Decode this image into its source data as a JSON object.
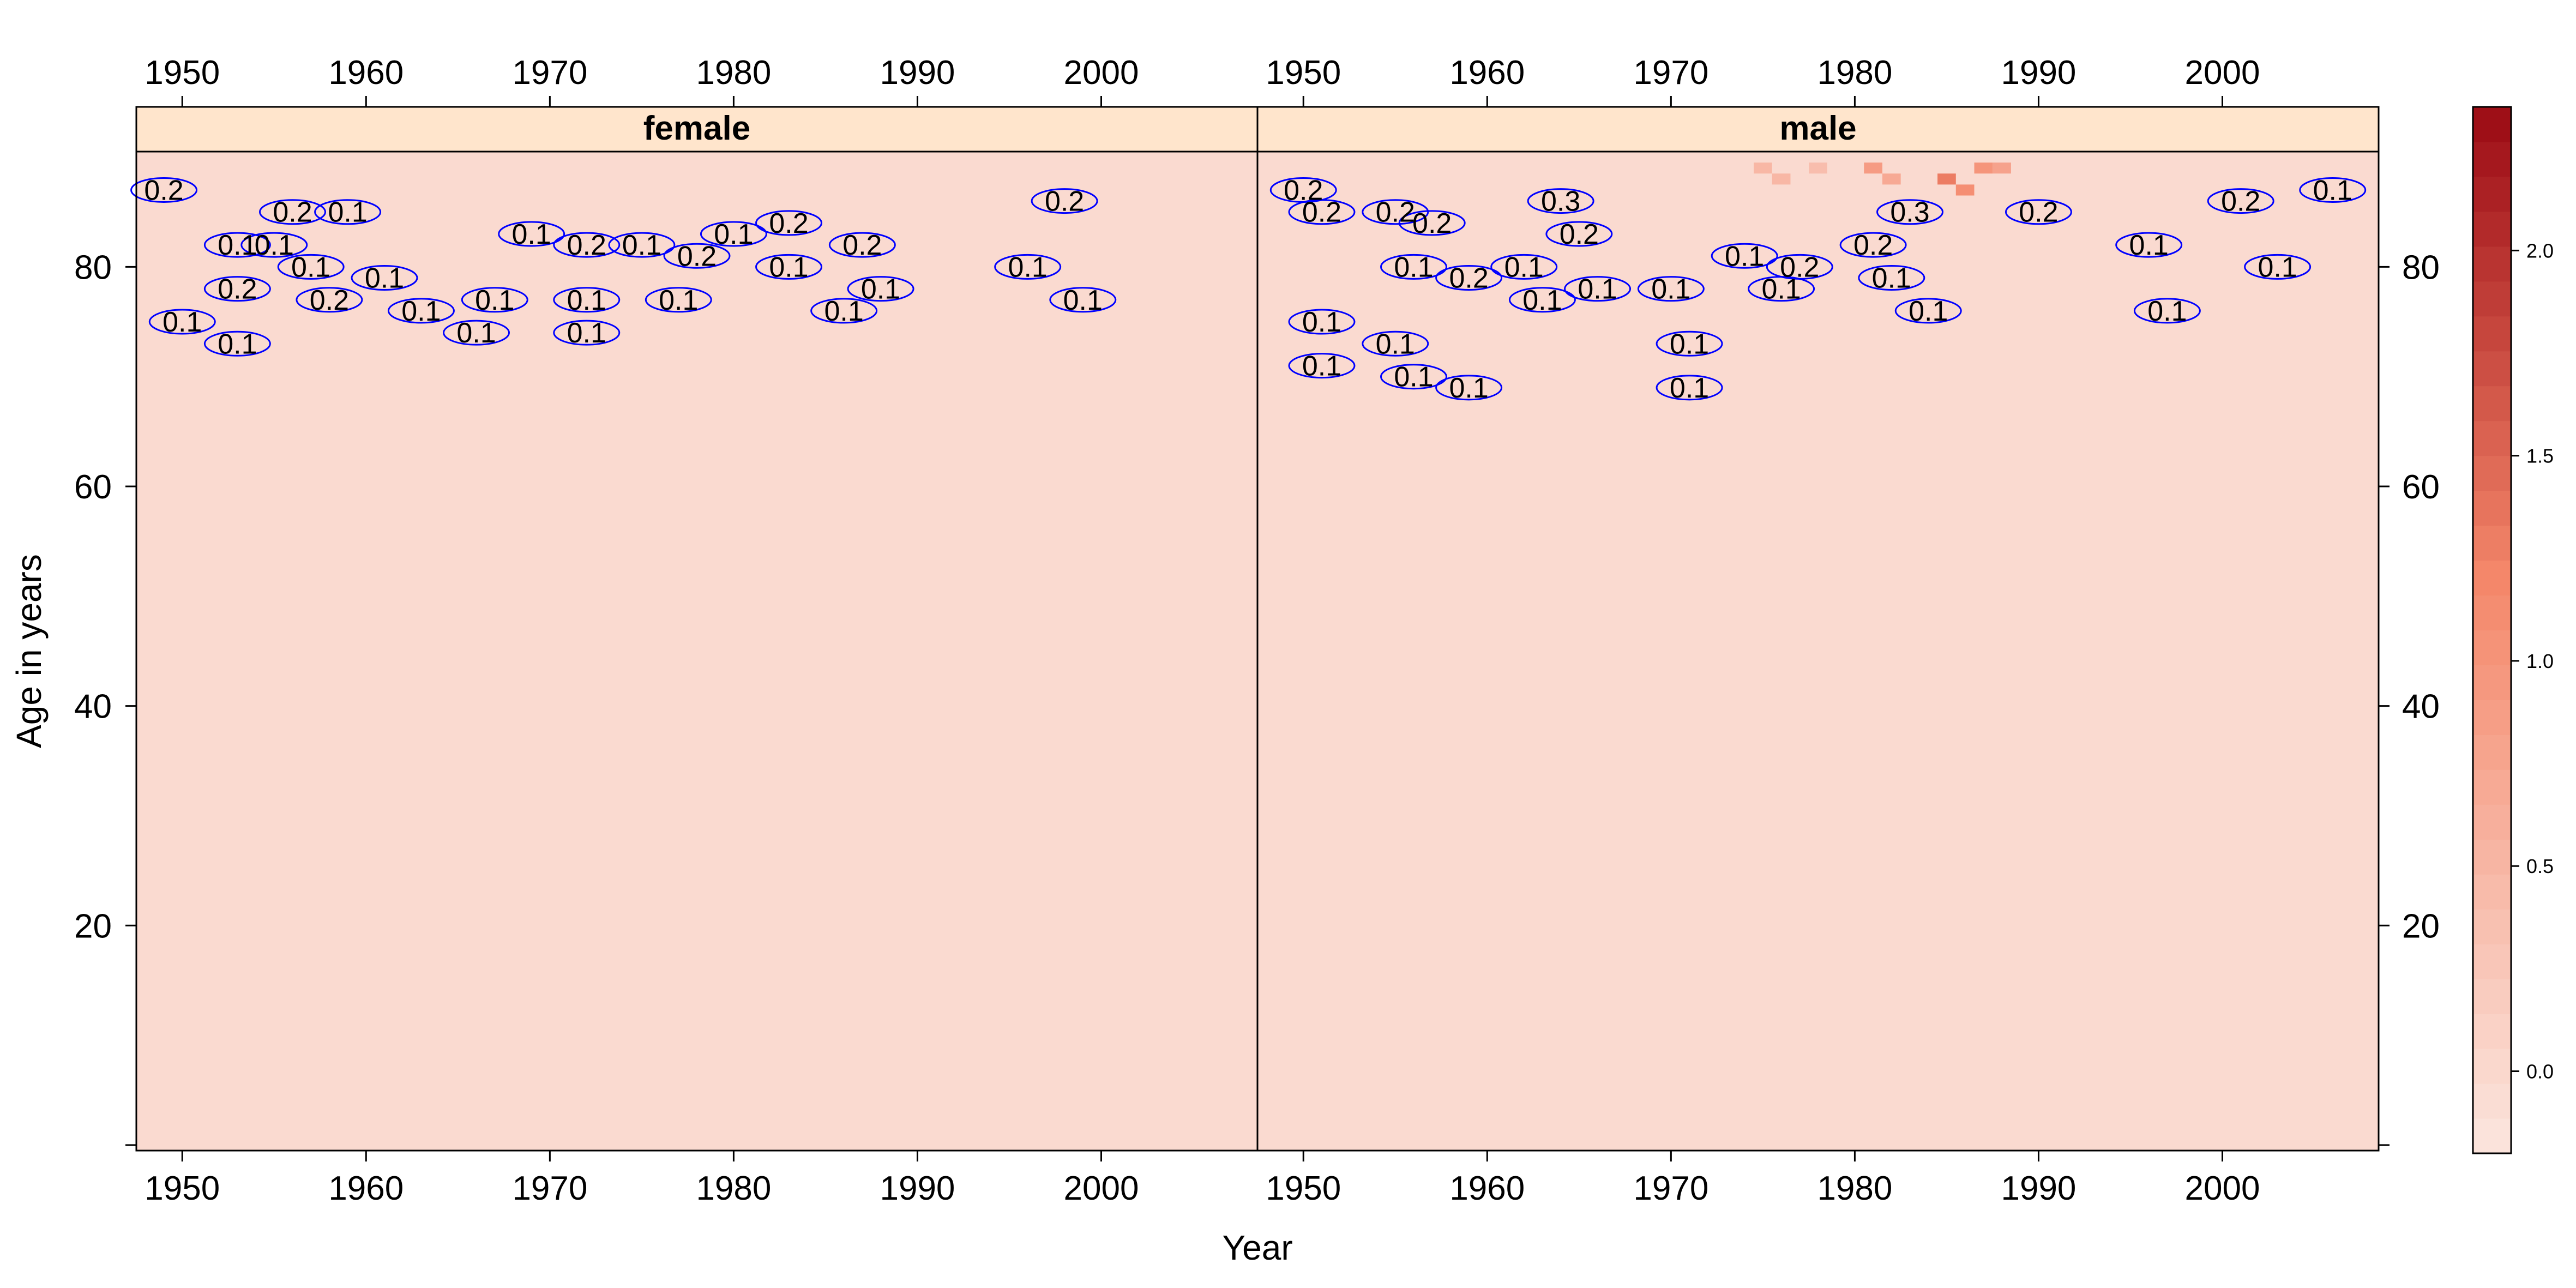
{
  "chart_data": {
    "type": "heatmap",
    "title": "",
    "xlabel": "Year",
    "ylabel": "Age in years",
    "xlim": [
      1947.5,
      2008.5
    ],
    "ylim": [
      -0.5,
      90.5
    ],
    "x_ticks": [
      "1950",
      "1960",
      "1970",
      "1980",
      "1990",
      "2000"
    ],
    "y_ticks": [
      "20",
      "40",
      "60",
      "80"
    ],
    "panels": [
      {
        "name": "female",
        "base_value": -0.02,
        "hotspots": [],
        "contour_labels": [
          {
            "x": 1949,
            "y": 87,
            "text": "0.2"
          },
          {
            "x": 1953,
            "y": 82,
            "text": "0.1"
          },
          {
            "x": 1955,
            "y": 82,
            "text": "0.1"
          },
          {
            "x": 1953,
            "y": 78,
            "text": "0.2"
          },
          {
            "x": 1950,
            "y": 75,
            "text": "0.1"
          },
          {
            "x": 1953,
            "y": 73,
            "text": "0.1"
          },
          {
            "x": 1956,
            "y": 85,
            "text": "0.2"
          },
          {
            "x": 1959,
            "y": 85,
            "text": "0.1"
          },
          {
            "x": 1957,
            "y": 80,
            "text": "0.1"
          },
          {
            "x": 1958,
            "y": 77,
            "text": "0.2"
          },
          {
            "x": 1961,
            "y": 79,
            "text": "0.1"
          },
          {
            "x": 1963,
            "y": 76,
            "text": "0.1"
          },
          {
            "x": 1966,
            "y": 74,
            "text": "0.1"
          },
          {
            "x": 1967,
            "y": 77,
            "text": "0.1"
          },
          {
            "x": 1969,
            "y": 83,
            "text": "0.1"
          },
          {
            "x": 1972,
            "y": 82,
            "text": "0.2"
          },
          {
            "x": 1972,
            "y": 77,
            "text": "0.1"
          },
          {
            "x": 1972,
            "y": 74,
            "text": "0.1"
          },
          {
            "x": 1975,
            "y": 82,
            "text": "0.1"
          },
          {
            "x": 1978,
            "y": 81,
            "text": "0.2"
          },
          {
            "x": 1977,
            "y": 77,
            "text": "0.1"
          },
          {
            "x": 1980,
            "y": 83,
            "text": "0.1"
          },
          {
            "x": 1983,
            "y": 84,
            "text": "0.2"
          },
          {
            "x": 1983,
            "y": 80,
            "text": "0.1"
          },
          {
            "x": 1986,
            "y": 76,
            "text": "0.1"
          },
          {
            "x": 1987,
            "y": 82,
            "text": "0.2"
          },
          {
            "x": 1988,
            "y": 78,
            "text": "0.1"
          },
          {
            "x": 1996,
            "y": 80,
            "text": "0.1"
          },
          {
            "x": 1999,
            "y": 77,
            "text": "0.1"
          },
          {
            "x": 1998,
            "y": 86,
            "text": "0.2"
          }
        ]
      },
      {
        "name": "male",
        "base_value": -0.02,
        "hotspots": [
          {
            "x": 1981,
            "y": 89,
            "value": 0.9
          },
          {
            "x": 1982,
            "y": 88,
            "value": 0.7
          },
          {
            "x": 1985,
            "y": 88,
            "value": 1.3
          },
          {
            "x": 1986,
            "y": 87,
            "value": 1.1
          },
          {
            "x": 1987,
            "y": 89,
            "value": 1.0
          },
          {
            "x": 1988,
            "y": 89,
            "value": 0.8
          },
          {
            "x": 1975,
            "y": 89,
            "value": 0.5
          },
          {
            "x": 1976,
            "y": 88,
            "value": 0.5
          },
          {
            "x": 1978,
            "y": 89,
            "value": 0.4
          }
        ],
        "contour_labels": [
          {
            "x": 1950,
            "y": 87,
            "text": "0.2"
          },
          {
            "x": 1951,
            "y": 85,
            "text": "0.2"
          },
          {
            "x": 1955,
            "y": 85,
            "text": "0.2"
          },
          {
            "x": 1957,
            "y": 84,
            "text": "0.2"
          },
          {
            "x": 1956,
            "y": 80,
            "text": "0.1"
          },
          {
            "x": 1959,
            "y": 79,
            "text": "0.2"
          },
          {
            "x": 1962,
            "y": 80,
            "text": "0.1"
          },
          {
            "x": 1964,
            "y": 86,
            "text": "0.3"
          },
          {
            "x": 1965,
            "y": 83,
            "text": "0.2"
          },
          {
            "x": 1951,
            "y": 75,
            "text": "0.1"
          },
          {
            "x": 1955,
            "y": 73,
            "text": "0.1"
          },
          {
            "x": 1956,
            "y": 70,
            "text": "0.1"
          },
          {
            "x": 1951,
            "y": 71,
            "text": "0.1"
          },
          {
            "x": 1959,
            "y": 69,
            "text": "0.1"
          },
          {
            "x": 1963,
            "y": 77,
            "text": "0.1"
          },
          {
            "x": 1966,
            "y": 78,
            "text": "0.1"
          },
          {
            "x": 1970,
            "y": 78,
            "text": "0.1"
          },
          {
            "x": 1971,
            "y": 73,
            "text": "0.1"
          },
          {
            "x": 1971,
            "y": 69,
            "text": "0.1"
          },
          {
            "x": 1974,
            "y": 81,
            "text": "0.1"
          },
          {
            "x": 1976,
            "y": 78,
            "text": "0.1"
          },
          {
            "x": 1977,
            "y": 80,
            "text": "0.2"
          },
          {
            "x": 1981,
            "y": 82,
            "text": "0.2"
          },
          {
            "x": 1982,
            "y": 79,
            "text": "0.1"
          },
          {
            "x": 1984,
            "y": 76,
            "text": "0.1"
          },
          {
            "x": 1983,
            "y": 85,
            "text": "0.3"
          },
          {
            "x": 1990,
            "y": 85,
            "text": "0.2"
          },
          {
            "x": 1996,
            "y": 82,
            "text": "0.1"
          },
          {
            "x": 1997,
            "y": 76,
            "text": "0.1"
          },
          {
            "x": 2001,
            "y": 86,
            "text": "0.2"
          },
          {
            "x": 2003,
            "y": 80,
            "text": "0.1"
          },
          {
            "x": 2006,
            "y": 87,
            "text": "0.1"
          }
        ]
      }
    ],
    "colorbar": {
      "min": -0.2,
      "max": 2.35,
      "ticks": [
        "0.0",
        "0.5",
        "1.0",
        "1.5",
        "2.0"
      ],
      "low_color": "#fbe6df",
      "mid_color": "#f4876a",
      "high_color": "#9b0a14"
    },
    "grid": false,
    "legend": "colorbar-right",
    "contour_color": "#0000ff",
    "strip_color": "#ffe5cc"
  }
}
